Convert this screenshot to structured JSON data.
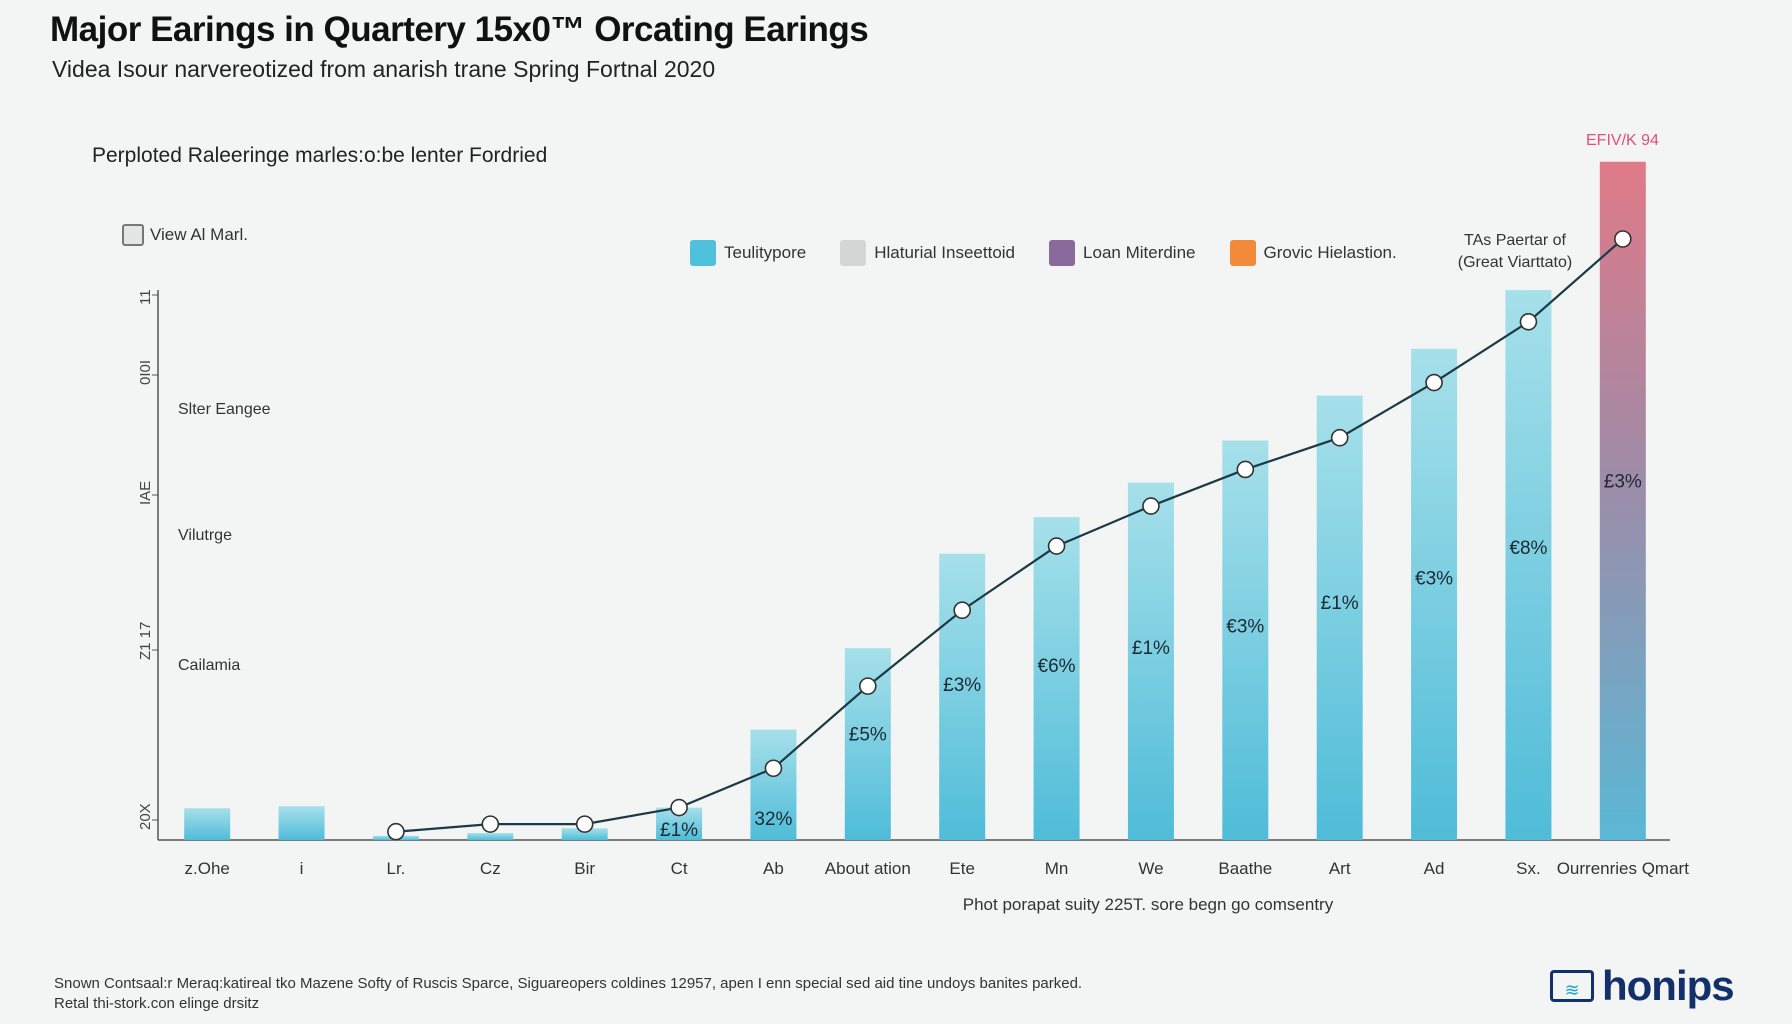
{
  "header": {
    "title": "Major Earings in Quartery 15x0™ Orcating Earings",
    "subtitle": "Videa Isour narvereotized from anarish trane Spring Fortnal 2020",
    "section_label": "Perploted Raleeringe marles:o:be lenter Fordried"
  },
  "controls": {
    "view_all_label": "View Al Marl."
  },
  "legend": [
    {
      "label": "Teulitypore",
      "color": "#4fc1dc"
    },
    {
      "label": "Hlaturial Inseettoid",
      "color": "#d4d6d6"
    },
    {
      "label": "Loan Miterdine",
      "color": "#8a6a9c"
    },
    {
      "label": "Grovic Hielastion.",
      "color": "#f28a3a"
    }
  ],
  "annotations": {
    "top_note": "TAs Paertar of (Great Viarttato)",
    "top_value": "EFIV/K 94"
  },
  "footer": {
    "line1": "Snown Contsaal:r Meraq:katireal tko Mazene Softy of Ruscis Sparce, Siguareopers coldines 12957, apen I enn special sed aid tine undoys banites parked.",
    "line2": "Retal thi-stork.con elinge drsitz"
  },
  "logo": {
    "text": "honips"
  },
  "colors": {
    "bar_top": "#a6e0ea",
    "bar_bottom": "#4fbcd8",
    "highlight_top": "#e07a88",
    "highlight_bottom": "#5ab8d6",
    "line": "#1c3a46"
  },
  "chart_data": {
    "type": "bar",
    "categories": [
      "z.Ohe",
      "i",
      "Lr.",
      "Cz",
      "Bir",
      "Ct",
      "Ab",
      "About ation",
      "Ete",
      "Mn",
      "We",
      "Baathe",
      "Art",
      "Ad",
      "Sx.",
      "Ourrenries Qmart"
    ],
    "values": [
      4.6,
      4.9,
      0.6,
      1.0,
      1.7,
      4.7,
      16.0,
      27.8,
      41.5,
      46.8,
      51.8,
      57.9,
      64.4,
      71.2,
      79.7,
      98.3
    ],
    "line_values": [
      null,
      null,
      1.2,
      2.3,
      2.3,
      4.7,
      10.4,
      22.3,
      33.3,
      42.6,
      48.4,
      53.7,
      58.3,
      66.3,
      75.1,
      87.1
    ],
    "data_labels": [
      "",
      "",
      "",
      "",
      "",
      "£1%",
      "32%",
      "£5%",
      "£3%",
      "€6%",
      "£1%",
      "€3%",
      "£1%",
      "€3%",
      "€8%",
      "£3%"
    ],
    "y_axis_labels": [
      "Slter Eangee",
      "Vilutrge",
      "Cailamia"
    ],
    "y_ticks": [
      "20X",
      "Z1 17",
      "IAE",
      "0I0I",
      "11"
    ],
    "xlabel": "Phot porapat suity 225T. sore begn go comsentry",
    "ylim": [
      0,
      100
    ],
    "highlight_index": 15
  }
}
